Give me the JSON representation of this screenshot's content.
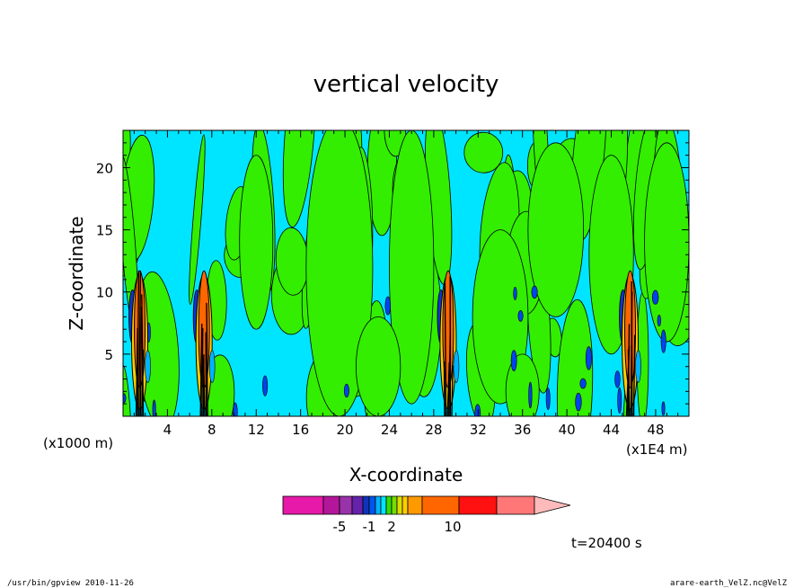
{
  "chart_data": {
    "type": "heatmap",
    "title": "vertical velocity",
    "xlabel": "X-coordinate",
    "ylabel": "Z-coordinate",
    "x_unit": "(x1E4 m)",
    "z_unit": "(x1000 m)",
    "xlim": [
      0,
      51
    ],
    "ylim": [
      0,
      23
    ],
    "x_ticks": [
      4,
      8,
      12,
      16,
      20,
      24,
      28,
      32,
      36,
      40,
      44,
      48
    ],
    "y_ticks": [
      5,
      10,
      15,
      20
    ],
    "updraft_columns_x": [
      1.5,
      7.3,
      29.3,
      45.7
    ],
    "colorbar": {
      "tick_labels": [
        "-5",
        "-1",
        "2",
        "10"
      ],
      "tick_values": [
        -5,
        -1,
        2,
        10
      ],
      "colors": [
        "#e619a8",
        "#b3169b",
        "#9933aa",
        "#6622aa",
        "#1133bb",
        "#0055ee",
        "#00b3ff",
        "#00e5ff",
        "#33dd00",
        "#77dd00",
        "#dddd00",
        "#ffcc00",
        "#ff9900",
        "#ff6600",
        "#ff1111",
        "#ff7777",
        "#ffbbbb"
      ]
    },
    "time_label": "t=20400 s"
  },
  "footer": {
    "left": "/usr/bin/gpview  2010-11-26",
    "right": "arare-earth_VelZ.nc@VelZ"
  }
}
